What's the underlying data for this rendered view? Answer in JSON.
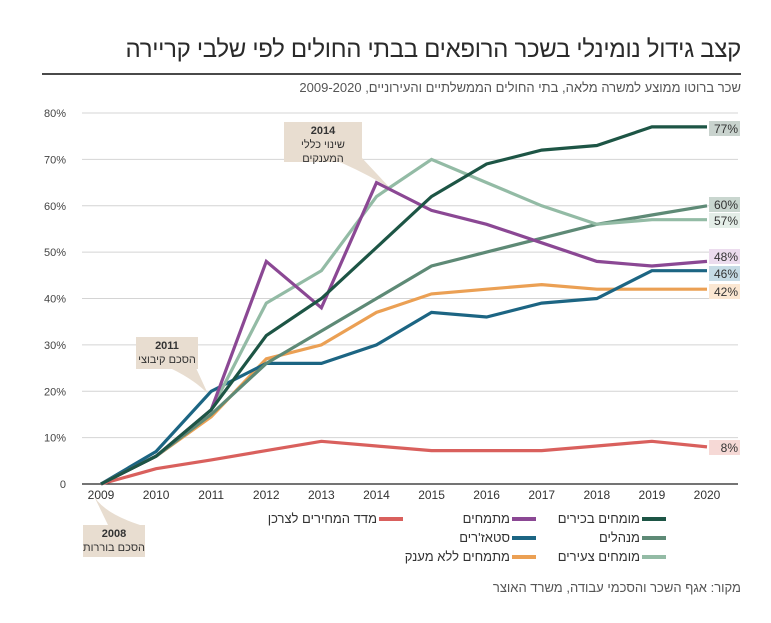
{
  "header": {
    "title": "קצב גידול נומינלי בשכר הרופאים בבתי החולים לפי שלבי קריירה",
    "subtitle": "שכר ברוטו ממוצע למשרה מלאה, בתי החולים הממשלתיים והעירוניים, 2009-2020"
  },
  "source": "מקור: אגף השכר והסכמי עבודה, משרד האוצר",
  "annotations": [
    {
      "year": "2014",
      "text": "שינוי כללי המענקים"
    },
    {
      "year": "2011",
      "text": "הסכם קיבוצי"
    },
    {
      "year": "2008",
      "text": "הסכם בוררות"
    }
  ],
  "chart_data": {
    "type": "line",
    "title": "קצב גידול נומינלי בשכר הרופאים בבתי החולים לפי שלבי קריירה",
    "subtitle": "שכר ברוטו ממוצע למשרה מלאה, בתי החולים הממשלתיים והעירוניים, 2009-2020",
    "xlabel": "",
    "ylabel": "",
    "x": [
      "2009",
      "2010",
      "2011",
      "2012",
      "2013",
      "2014",
      "2015",
      "2016",
      "2017",
      "2018",
      "2019",
      "2020"
    ],
    "ylim": [
      0,
      80
    ],
    "yticks": [
      0,
      10,
      20,
      30,
      40,
      50,
      60,
      70,
      80
    ],
    "ytick_labels": [
      "0",
      "10%",
      "20%",
      "30%",
      "40%",
      "50%",
      "60%",
      "70%",
      "80%"
    ],
    "grid": true,
    "legend_position": "bottom",
    "series": [
      {
        "name": "מומחים בכירים",
        "color": "#1d5545",
        "values": [
          0,
          6,
          16,
          32,
          40,
          51,
          62,
          69,
          72,
          73,
          77,
          77
        ],
        "end_label": "77%",
        "end_bg": "#c9d3ce"
      },
      {
        "name": "מנהלים",
        "color": "#5e8a76",
        "values": [
          0,
          6,
          15,
          26,
          33,
          40,
          47,
          50,
          53,
          56,
          58,
          60
        ],
        "end_label": "60%",
        "end_bg": "#c9d6cf"
      },
      {
        "name": "מומחים צעירים",
        "color": "#93bba5",
        "values": [
          0,
          6,
          16,
          39,
          46,
          62,
          70,
          65,
          60,
          56,
          57,
          57
        ],
        "end_label": "57%",
        "end_bg": "#e4eee8"
      },
      {
        "name": "מתמחים",
        "color": "#8b4894",
        "values": [
          0,
          6,
          16,
          48,
          38,
          65,
          59,
          56,
          52,
          48,
          47,
          48
        ],
        "end_label": "48%",
        "end_bg": "#ecdcee"
      },
      {
        "name": "סטאז'רים",
        "color": "#1c6583",
        "values": [
          0,
          7,
          20,
          26,
          26,
          30,
          37,
          36,
          39,
          40,
          46,
          46
        ],
        "end_label": "46%",
        "end_bg": "#c6dbe5"
      },
      {
        "name": "מתמחים ללא מענק",
        "color": "#eba054",
        "values": [
          0,
          6,
          14.5,
          27,
          30,
          37,
          41,
          42,
          43,
          42,
          42,
          42
        ],
        "end_label": "42%",
        "end_bg": "#fbe7d2"
      },
      {
        "name": "מדד המחירים לצרכן",
        "color": "#d9605d",
        "values": [
          0,
          3.3,
          5.2,
          7.2,
          9.2,
          8.2,
          7.2,
          7.2,
          7.2,
          8.2,
          9.2,
          8
        ],
        "end_label": "8%",
        "end_bg": "#f6d9d6"
      }
    ]
  }
}
